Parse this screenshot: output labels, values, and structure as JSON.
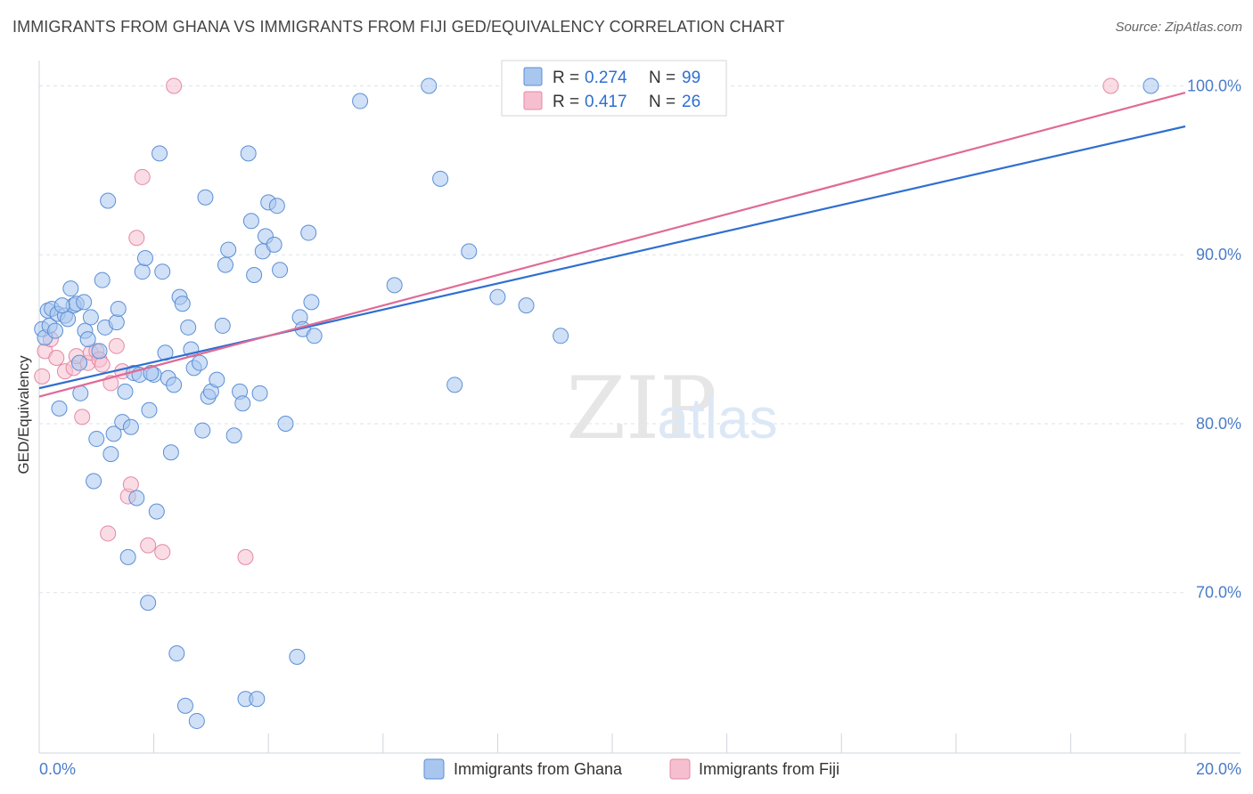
{
  "title": "IMMIGRANTS FROM GHANA VS IMMIGRANTS FROM FIJI GED/EQUIVALENCY CORRELATION CHART",
  "source": "Source: ZipAtlas.com",
  "watermark": {
    "zip": "ZIP",
    "atlas": "atlas"
  },
  "colors": {
    "ghana_fill": "#a9c6ee",
    "ghana_stroke": "#5b8fd6",
    "ghana_line": "#2f6fd0",
    "fiji_fill": "#f6bfd0",
    "fiji_stroke": "#e389a6",
    "fiji_line": "#e06a96",
    "axis_label": "#4a7cc9",
    "grid": "#dde3ea"
  },
  "legend": {
    "r_label": "R =",
    "n_label": "N =",
    "ghana": {
      "r": "0.274",
      "n": "99"
    },
    "fiji": {
      "r": "0.417",
      "n": "26"
    }
  },
  "chart_data": {
    "type": "scatter",
    "xlabel": "",
    "ylabel": "GED/Equivalency",
    "xlim": [
      0,
      20
    ],
    "ylim": [
      60.5,
      101.5
    ],
    "x_tick_labels": [
      {
        "value": 0,
        "label": "0.0%"
      },
      {
        "value": 20,
        "label": "20.0%"
      }
    ],
    "y_tick_labels": [
      {
        "value": 70,
        "label": "70.0%"
      },
      {
        "value": 80,
        "label": "80.0%"
      },
      {
        "value": 90,
        "label": "90.0%"
      },
      {
        "value": 100,
        "label": "100.0%"
      }
    ],
    "grid": true,
    "legend_position": "top-center",
    "series": [
      {
        "name": "Immigrants from Ghana",
        "trend": {
          "x": [
            0,
            20
          ],
          "y": [
            82.1,
            97.6
          ]
        },
        "points": [
          [
            0.05,
            85.6
          ],
          [
            0.1,
            85.1
          ],
          [
            0.15,
            86.7
          ],
          [
            0.18,
            85.8
          ],
          [
            0.22,
            86.8
          ],
          [
            0.28,
            85.5
          ],
          [
            0.32,
            86.5
          ],
          [
            0.35,
            80.9
          ],
          [
            0.45,
            86.4
          ],
          [
            0.5,
            86.2
          ],
          [
            0.55,
            88.0
          ],
          [
            0.6,
            87.0
          ],
          [
            0.65,
            87.1
          ],
          [
            0.7,
            83.6
          ],
          [
            0.72,
            81.8
          ],
          [
            0.78,
            87.2
          ],
          [
            0.8,
            85.5
          ],
          [
            0.85,
            85.0
          ],
          [
            0.9,
            86.3
          ],
          [
            0.95,
            76.6
          ],
          [
            1.0,
            79.1
          ],
          [
            1.05,
            84.3
          ],
          [
            1.1,
            88.5
          ],
          [
            1.15,
            85.7
          ],
          [
            1.2,
            93.2
          ],
          [
            1.25,
            78.2
          ],
          [
            1.3,
            79.4
          ],
          [
            1.35,
            86.0
          ],
          [
            1.38,
            86.8
          ],
          [
            1.45,
            80.1
          ],
          [
            1.5,
            81.9
          ],
          [
            1.55,
            72.1
          ],
          [
            1.6,
            79.8
          ],
          [
            1.65,
            83.0
          ],
          [
            1.7,
            75.6
          ],
          [
            1.75,
            82.9
          ],
          [
            1.8,
            89.0
          ],
          [
            1.85,
            89.8
          ],
          [
            1.9,
            69.4
          ],
          [
            1.92,
            80.8
          ],
          [
            2.0,
            82.9
          ],
          [
            2.05,
            74.8
          ],
          [
            2.1,
            96.0
          ],
          [
            2.15,
            89.0
          ],
          [
            2.2,
            84.2
          ],
          [
            2.25,
            82.7
          ],
          [
            2.3,
            78.3
          ],
          [
            2.35,
            82.3
          ],
          [
            2.4,
            66.4
          ],
          [
            2.45,
            87.5
          ],
          [
            2.5,
            87.1
          ],
          [
            2.55,
            63.3
          ],
          [
            2.6,
            85.7
          ],
          [
            2.65,
            84.4
          ],
          [
            2.7,
            83.3
          ],
          [
            2.75,
            62.4
          ],
          [
            2.8,
            83.6
          ],
          [
            2.85,
            79.6
          ],
          [
            2.9,
            93.4
          ],
          [
            2.95,
            81.6
          ],
          [
            3.0,
            81.9
          ],
          [
            3.1,
            82.6
          ],
          [
            3.2,
            85.8
          ],
          [
            3.25,
            89.4
          ],
          [
            3.3,
            90.3
          ],
          [
            3.4,
            79.3
          ],
          [
            3.5,
            81.9
          ],
          [
            3.55,
            81.2
          ],
          [
            3.6,
            63.7
          ],
          [
            3.65,
            96.0
          ],
          [
            3.7,
            92.0
          ],
          [
            3.75,
            88.8
          ],
          [
            3.8,
            63.7
          ],
          [
            3.85,
            81.8
          ],
          [
            3.9,
            90.2
          ],
          [
            3.95,
            91.1
          ],
          [
            4.0,
            93.1
          ],
          [
            4.1,
            90.6
          ],
          [
            4.15,
            92.9
          ],
          [
            4.2,
            89.1
          ],
          [
            4.3,
            80.0
          ],
          [
            4.5,
            66.2
          ],
          [
            4.55,
            86.3
          ],
          [
            4.6,
            85.6
          ],
          [
            4.7,
            91.3
          ],
          [
            4.75,
            87.2
          ],
          [
            4.8,
            85.2
          ],
          [
            5.6,
            99.1
          ],
          [
            6.2,
            88.2
          ],
          [
            6.8,
            100.0
          ],
          [
            7.0,
            94.5
          ],
          [
            7.25,
            82.3
          ],
          [
            7.5,
            90.2
          ],
          [
            8.0,
            87.5
          ],
          [
            8.5,
            87.0
          ],
          [
            9.1,
            85.2
          ],
          [
            19.4,
            100.0
          ],
          [
            0.4,
            87.0
          ],
          [
            1.95,
            83.0
          ]
        ]
      },
      {
        "name": "Immigrants from Fiji",
        "trend": {
          "x": [
            0,
            20
          ],
          "y": [
            81.6,
            99.6
          ]
        },
        "points": [
          [
            0.05,
            82.8
          ],
          [
            0.1,
            84.3
          ],
          [
            0.3,
            83.9
          ],
          [
            0.45,
            83.1
          ],
          [
            0.6,
            83.3
          ],
          [
            0.65,
            84.0
          ],
          [
            0.75,
            80.4
          ],
          [
            0.85,
            83.6
          ],
          [
            0.9,
            84.2
          ],
          [
            1.0,
            84.3
          ],
          [
            1.05,
            83.8
          ],
          [
            1.1,
            83.5
          ],
          [
            1.2,
            73.5
          ],
          [
            1.25,
            82.4
          ],
          [
            1.35,
            84.6
          ],
          [
            1.45,
            83.1
          ],
          [
            1.55,
            75.7
          ],
          [
            1.6,
            76.4
          ],
          [
            1.7,
            91.0
          ],
          [
            1.8,
            94.6
          ],
          [
            1.9,
            72.8
          ],
          [
            2.15,
            72.4
          ],
          [
            2.35,
            100.0
          ],
          [
            3.6,
            72.1
          ],
          [
            18.7,
            100.0
          ],
          [
            0.2,
            85.0
          ]
        ]
      }
    ]
  }
}
